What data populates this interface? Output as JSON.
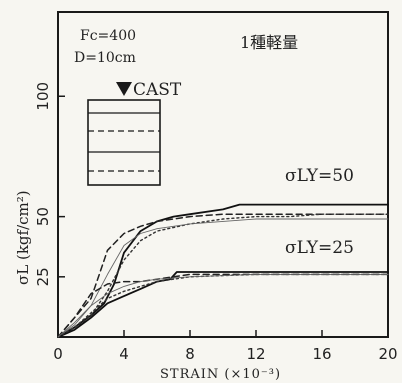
{
  "chart_data": {
    "type": "line",
    "xlabel": "STRAIN (×10⁻³)",
    "ylabel": "σL (kgf/cm²)",
    "xlim": [
      0,
      20
    ],
    "ylim": [
      0,
      135
    ],
    "x_ticks": [
      "0",
      "4",
      "8",
      "12",
      "16",
      "20"
    ],
    "y_ticks": [
      "25",
      "50",
      "100"
    ],
    "annotations": {
      "fc": "Fc=400",
      "d": "D=10cm",
      "type_label": "1種軽量",
      "cast": "CAST",
      "sly50": "σLY=50",
      "sly25": "σLY=25"
    },
    "grid": false,
    "series": [
      {
        "group": "σLY=50",
        "style": "solid",
        "x": [
          0,
          1,
          2,
          2.8,
          3.4,
          4,
          5,
          6,
          7,
          8,
          10,
          11,
          12,
          14,
          16,
          18,
          20
        ],
        "y": [
          0,
          4,
          9,
          14,
          22,
          35,
          44,
          48,
          50,
          51,
          53,
          55,
          55,
          55,
          55,
          55,
          55
        ]
      },
      {
        "group": "σLY=50",
        "style": "dashed",
        "x": [
          0,
          1,
          2,
          2.5,
          3,
          4,
          5,
          6,
          7,
          8,
          10,
          12,
          14,
          16,
          18,
          20
        ],
        "y": [
          0,
          8,
          16,
          26,
          36,
          43,
          46,
          48,
          49,
          50,
          51,
          51,
          51,
          51,
          51,
          51
        ]
      },
      {
        "group": "σLY=50",
        "style": "dotted",
        "x": [
          0,
          1,
          2,
          3,
          4,
          5,
          6,
          8,
          10,
          12,
          14,
          16,
          18,
          20
        ],
        "y": [
          0,
          3,
          9,
          19,
          32,
          40,
          44,
          47,
          49,
          50,
          50,
          51,
          51,
          51
        ]
      },
      {
        "group": "σLY=50",
        "style": "thin",
        "x": [
          0,
          1,
          2,
          3,
          4,
          5,
          6,
          8,
          10,
          12,
          14,
          16,
          18,
          20
        ],
        "y": [
          0,
          5,
          13,
          26,
          38,
          43,
          45,
          47,
          48,
          49,
          49,
          49,
          49,
          49
        ]
      },
      {
        "group": "σLY=25",
        "style": "solid",
        "x": [
          0,
          1,
          2,
          3,
          4,
          5,
          6,
          6.8,
          7.2,
          8,
          12,
          16,
          20
        ],
        "y": [
          0,
          3,
          8,
          14,
          17,
          20,
          23,
          24,
          27,
          27,
          27,
          27,
          27
        ]
      },
      {
        "group": "σLY=25",
        "style": "dashed",
        "x": [
          0,
          1,
          2,
          3,
          4,
          5,
          6,
          7,
          8,
          12,
          16,
          20
        ],
        "y": [
          0,
          8,
          18,
          22,
          23,
          23,
          24,
          25,
          26,
          26,
          26,
          26
        ]
      },
      {
        "group": "σLY=25",
        "style": "dotted",
        "x": [
          0,
          1,
          2,
          3,
          4,
          5,
          6,
          8,
          12,
          16,
          20
        ],
        "y": [
          0,
          4,
          10,
          16,
          19,
          21,
          23,
          25,
          26,
          26,
          26
        ]
      },
      {
        "group": "σLY=25",
        "style": "thin",
        "x": [
          0,
          1,
          2,
          3,
          4,
          5,
          6,
          8,
          12,
          16,
          20
        ],
        "y": [
          0,
          6,
          13,
          18,
          21,
          23,
          24,
          25,
          26,
          26,
          26
        ]
      }
    ]
  }
}
